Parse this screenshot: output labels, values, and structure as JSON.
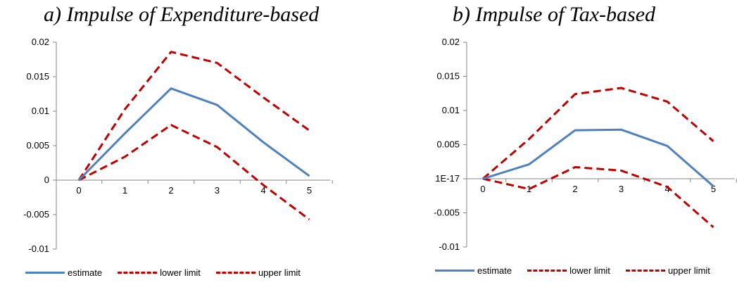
{
  "chart_data": [
    {
      "type": "line",
      "title": "a)  Impulse of Expenditure-based",
      "categories": [
        "0",
        "1",
        "2",
        "3",
        "4",
        "5"
      ],
      "yticks": [
        "0.02",
        "0.015",
        "0.01",
        "0.005",
        "0",
        "-0.005",
        "-0.01"
      ],
      "ylim": [
        -0.01,
        0.02
      ],
      "grid": false,
      "legend_position": "bottom",
      "series": [
        {
          "name": "estimate",
          "values": [
            0,
            0.0068,
            0.0133,
            0.0109,
            0.0055,
            0.0006
          ],
          "color": "#4f81bd",
          "style": "solid"
        },
        {
          "name": "lower limit",
          "values": [
            0,
            0.0034,
            0.008,
            0.0048,
            -0.0007,
            -0.0057
          ],
          "color": "#c00000",
          "style": "dashed"
        },
        {
          "name": "upper limit",
          "values": [
            0,
            0.0103,
            0.0186,
            0.017,
            0.012,
            0.0072
          ],
          "color": "#c00000",
          "style": "dashed"
        }
      ]
    },
    {
      "type": "line",
      "title": "b)  Impulse of Tax-based",
      "categories": [
        "0",
        "1",
        "2",
        "3",
        "4",
        "5"
      ],
      "yticks": [
        "0.02",
        "0.015",
        "0.01",
        "0.005",
        "1E-17",
        "-0.005",
        "-0.01"
      ],
      "ylim": [
        -0.01,
        0.02
      ],
      "grid": false,
      "legend_position": "bottom",
      "series": [
        {
          "name": "estimate",
          "values": [
            0,
            0.0021,
            0.0071,
            0.0072,
            0.0048,
            -0.0011
          ],
          "color": "#4f81bd",
          "style": "solid"
        },
        {
          "name": "lower limit",
          "values": [
            0,
            -0.0015,
            0.0017,
            0.0012,
            -0.0012,
            -0.0071
          ],
          "color": "#c00000",
          "style": "dashed"
        },
        {
          "name": "upper limit",
          "values": [
            0,
            0.0058,
            0.0124,
            0.0133,
            0.0113,
            0.0055
          ],
          "color": "#c00000",
          "style": "dashed"
        }
      ]
    }
  ]
}
